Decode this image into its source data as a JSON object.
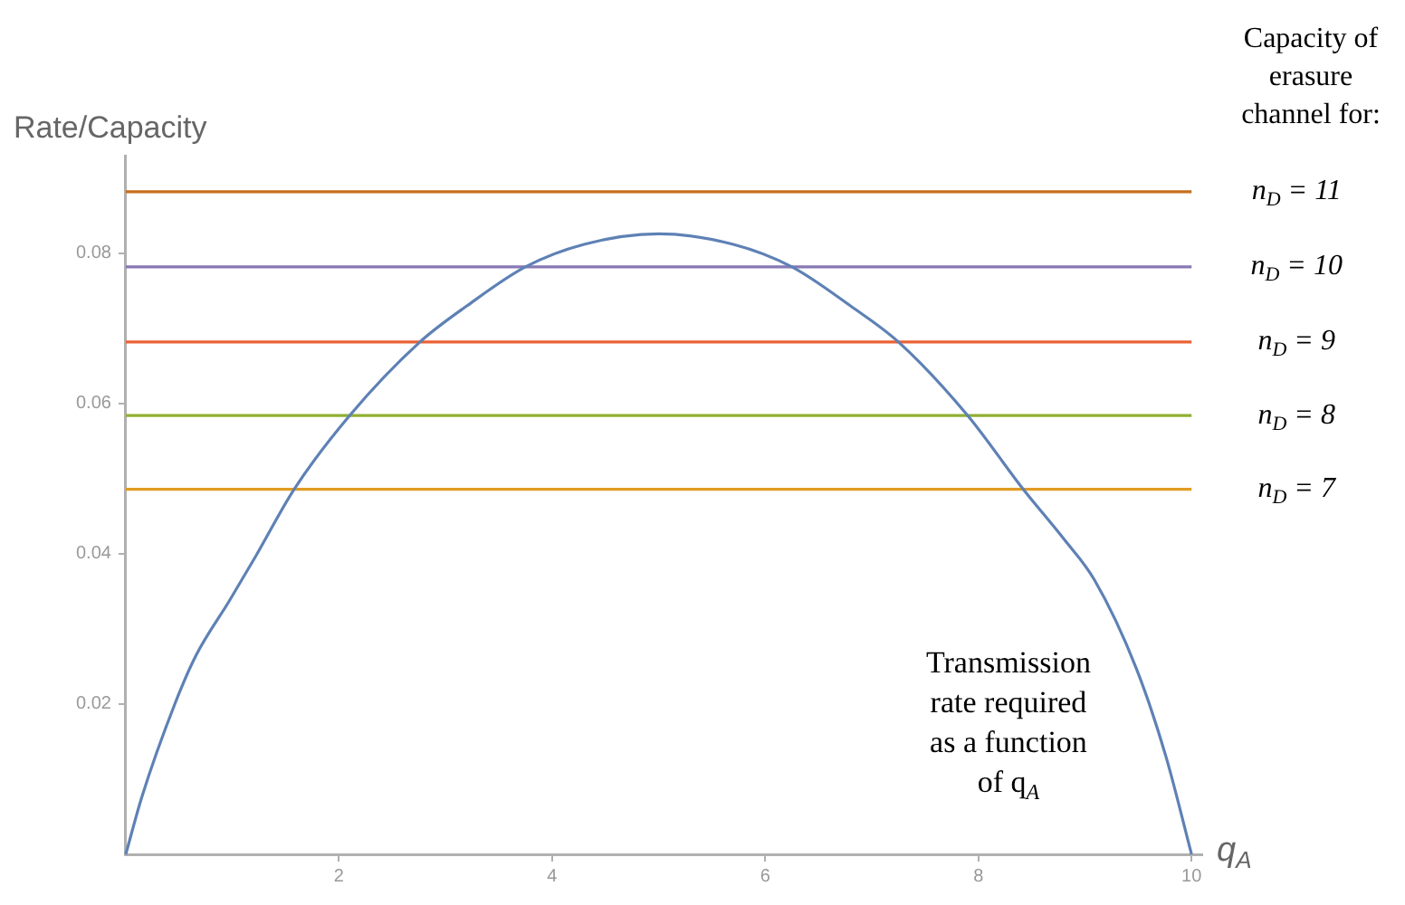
{
  "chart_data": {
    "type": "line",
    "ylabel": "Rate/Capacity",
    "xlabel": "q$_{A}$",
    "x": [
      0,
      0.15,
      0.46,
      0.66,
      0.97,
      1.22,
      1.58,
      2.1,
      2.76,
      3.2,
      3.75,
      4.3,
      5,
      5.7,
      6.25,
      6.8,
      7.25,
      7.9,
      8.42,
      8.8,
      9.09,
      9.48,
      9.76,
      10
    ],
    "series": [
      {
        "color": "#5e81b5",
        "values": [
          0,
          0.0076,
          0.02,
          0.0265,
          0.0337,
          0.0397,
          0.0486,
          0.0584,
          0.0682,
          0.073,
          0.0782,
          0.0812,
          0.0826,
          0.0812,
          0.0782,
          0.073,
          0.0682,
          0.0584,
          0.0486,
          0.042,
          0.0365,
          0.0248,
          0.013,
          0
        ]
      },
      {
        "name": "n$_{D}$ = 11",
        "color": "#c56e1a",
        "values": [
          0.0882,
          0.0882,
          0.0882,
          0.0882,
          0.0882,
          0.0882,
          0.0882,
          0.0882,
          0.0882,
          0.0882,
          0.0882,
          0.0882,
          0.0882,
          0.0882,
          0.0882,
          0.0882,
          0.0882,
          0.0882,
          0.0882,
          0.0882,
          0.0882,
          0.0882,
          0.0882,
          0.0882
        ]
      },
      {
        "name": "n$_{D}$ = 10",
        "color": "#8778b3",
        "values": [
          0.0782,
          0.0782,
          0.0782,
          0.0782,
          0.0782,
          0.0782,
          0.0782,
          0.0782,
          0.0782,
          0.0782,
          0.0782,
          0.0782,
          0.0782,
          0.0782,
          0.0782,
          0.0782,
          0.0782,
          0.0782,
          0.0782,
          0.0782,
          0.0782,
          0.0782,
          0.0782,
          0.0782
        ]
      },
      {
        "name": "n$_{D}$ = 9",
        "color": "#eb6235",
        "values": [
          0.0682,
          0.0682,
          0.0682,
          0.0682,
          0.0682,
          0.0682,
          0.0682,
          0.0682,
          0.0682,
          0.0682,
          0.0682,
          0.0682,
          0.0682,
          0.0682,
          0.0682,
          0.0682,
          0.0682,
          0.0682,
          0.0682,
          0.0682,
          0.0682,
          0.0682,
          0.0682,
          0.0682
        ]
      },
      {
        "name": "n$_{D}$ = 8",
        "color": "#8fb032",
        "values": [
          0.0584,
          0.0584,
          0.0584,
          0.0584,
          0.0584,
          0.0584,
          0.0584,
          0.0584,
          0.0584,
          0.0584,
          0.0584,
          0.0584,
          0.0584,
          0.0584,
          0.0584,
          0.0584,
          0.0584,
          0.0584,
          0.0584,
          0.0584,
          0.0584,
          0.0584,
          0.0584,
          0.0584
        ]
      },
      {
        "name": "n$_{D}$ = 7",
        "color": "#e19c24",
        "values": [
          0.0486,
          0.0486,
          0.0486,
          0.0486,
          0.0486,
          0.0486,
          0.0486,
          0.0486,
          0.0486,
          0.0486,
          0.0486,
          0.0486,
          0.0486,
          0.0486,
          0.0486,
          0.0486,
          0.0486,
          0.0486,
          0.0486,
          0.0486,
          0.0486,
          0.0486,
          0.0486,
          0.0486
        ]
      }
    ],
    "xlim": [
      0,
      10.1
    ],
    "xticks": [
      2,
      4,
      6,
      8,
      10
    ],
    "ylim": [
      0,
      0.093
    ],
    "yticks": [
      0.02,
      0.04,
      0.06,
      0.08
    ],
    "grid": false,
    "legend": false,
    "annotations": [
      "Capacity of erasure channel for:",
      "Transmission rate required as a function of q$_{A}$"
    ]
  }
}
